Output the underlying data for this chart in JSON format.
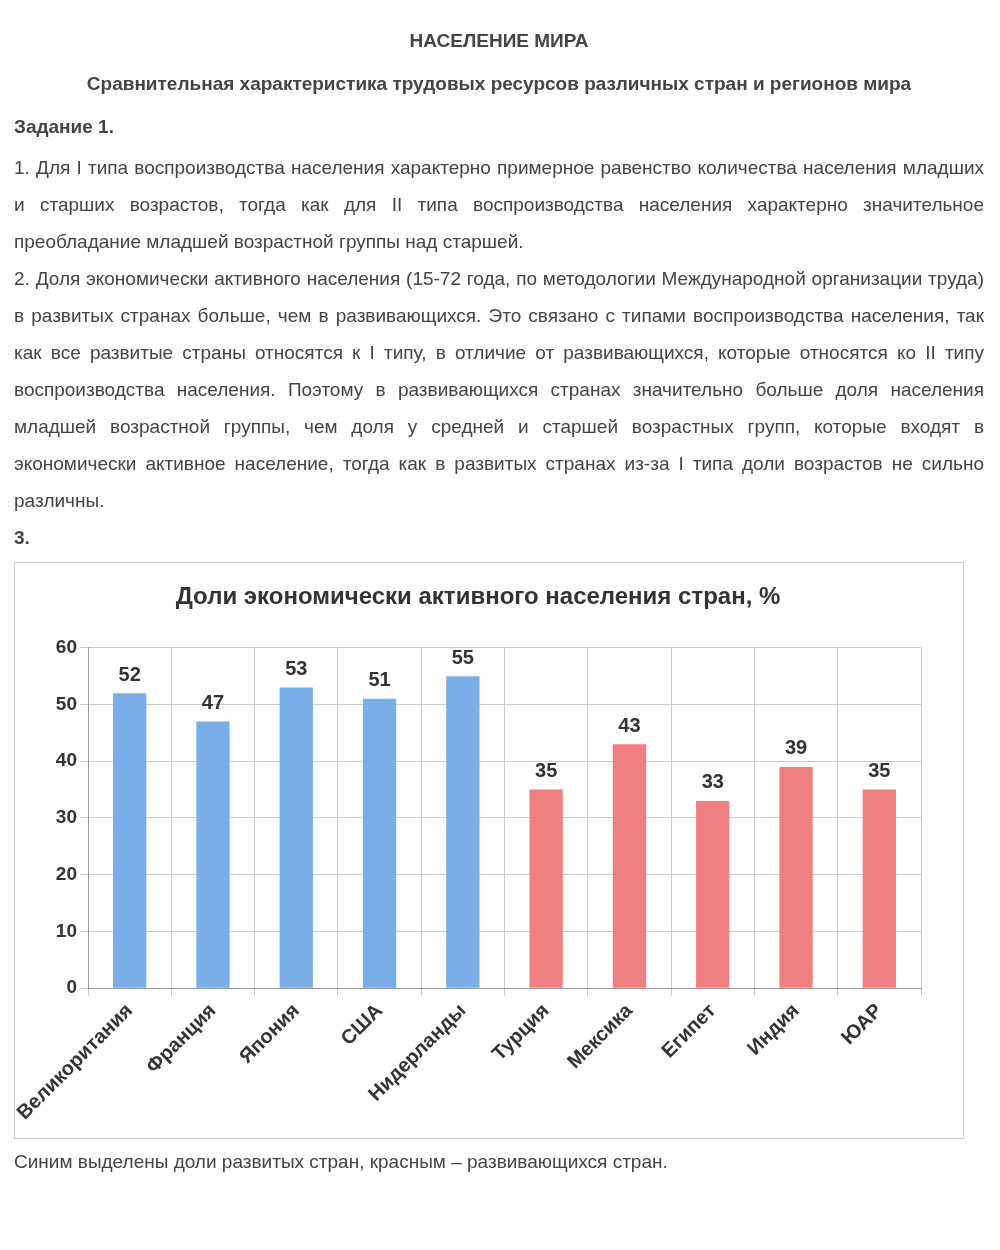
{
  "chart_data": {
    "type": "bar",
    "title": "Доли экономически активного населения стран, %",
    "categories": [
      "Великоритания",
      "Франция",
      "Япония",
      "США",
      "Нидерланды",
      "Турция",
      "Мексика",
      "Египет",
      "Индия",
      "ЮАР"
    ],
    "values": [
      52,
      47,
      53,
      51,
      55,
      35,
      43,
      33,
      39,
      35
    ],
    "colors": [
      "#7aaee8",
      "#7aaee8",
      "#7aaee8",
      "#7aaee8",
      "#7aaee8",
      "#f08080",
      "#f08080",
      "#f08080",
      "#f08080",
      "#f08080"
    ],
    "ylim": [
      0,
      60
    ],
    "yticks": [
      0,
      10,
      20,
      30,
      40,
      50,
      60
    ],
    "grid": true,
    "data_labels": true,
    "legend": false,
    "annotations": [
      "НАСЕЛЕНИЕ МИРА",
      "Сравнительная характеристика трудовых ресурсов различных стран и регионов мира",
      "Задание 1.",
      "1. Для I типа воспроизводства населения характерно примерное равенство количества населения младших и старших возрастов, тогда как для II типа воспроизводства населения характерно значительное преобладание младшей возрастной группы над старшей.",
      "2. Доля экономически активного населения (15-72 года, по методологии Международной организации труда) в развитых странах больше, чем в развивающихся. Это связано с типами воспроизводства населения, так как все развитые страны относятся к I типу, в отличие от развивающихся, которые относятся ко II типу воспроизводства населения. Поэтому в развивающихся странах значительно больше доля населения младшей возрастной группы, чем доля у средней и старшей возрастных групп, которые входят в экономически активное население, тогда как в развитых странах из-за I типа доли возрастов не сильно различны.",
      "3.",
      "Синим выделены доли развитых стран, красным – развивающихся стран."
    ]
  }
}
